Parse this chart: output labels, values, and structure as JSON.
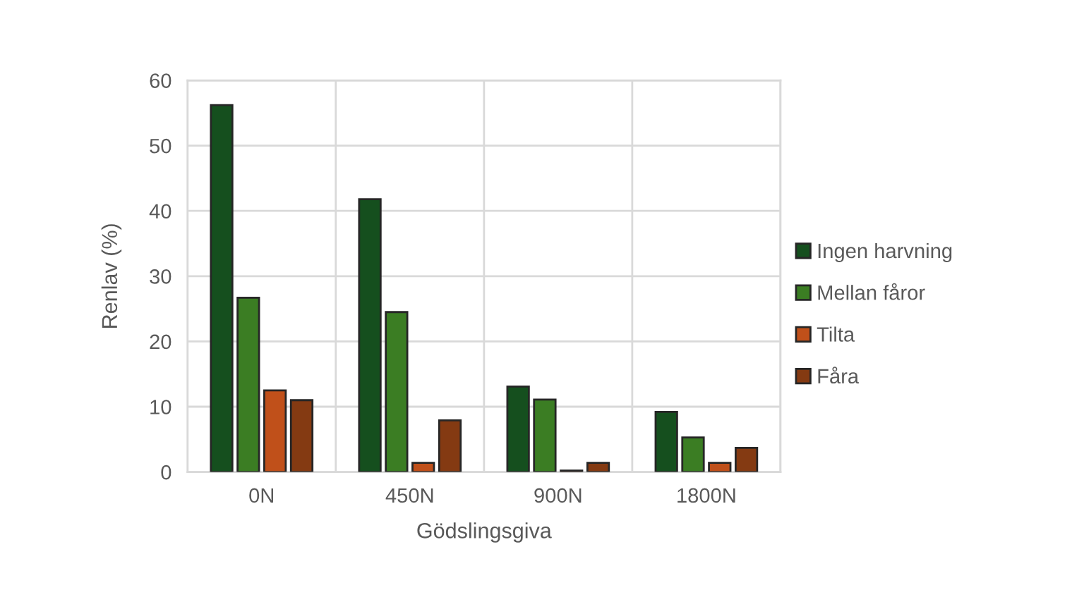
{
  "chart_data": {
    "type": "bar",
    "xlabel": "Gödslingsgiva",
    "ylabel": "Renlav (%)",
    "categories": [
      "0N",
      "450N",
      "900N",
      "1800N"
    ],
    "series": [
      {
        "name": "Ingen harvning",
        "color": "#154f1e",
        "values": [
          56.2,
          41.8,
          13.1,
          9.2
        ]
      },
      {
        "name": "Mellan fåror",
        "color": "#3b7d23",
        "values": [
          26.7,
          24.5,
          11.1,
          5.3
        ]
      },
      {
        "name": "Tilta",
        "color": "#c0501a",
        "values": [
          12.5,
          1.4,
          0.2,
          1.4
        ]
      },
      {
        "name": "Fåra",
        "color": "#843a12",
        "values": [
          11.0,
          7.9,
          1.4,
          3.7
        ]
      }
    ],
    "ylim": [
      0,
      60
    ],
    "yticks": [
      0,
      10,
      20,
      30,
      40,
      50,
      60
    ],
    "grid": true,
    "legend": "right"
  }
}
